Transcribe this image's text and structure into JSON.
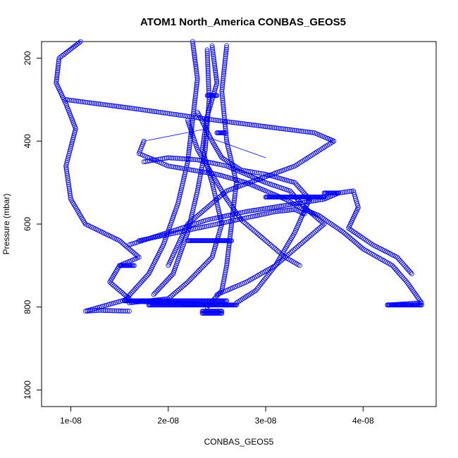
{
  "chart_data": {
    "type": "scatter",
    "title": "ATOM1 North_America CONBAS_GEOS5",
    "xlabel": "CONBAS_GEOS5",
    "ylabel": "Pressure (mbar)",
    "xlim": [
      7e-09,
      4.75e-08
    ],
    "ylim": [
      1040,
      160
    ],
    "y_reversed": true,
    "grid": false,
    "x_ticks": [
      {
        "value": 1e-08,
        "label": "1e-08"
      },
      {
        "value": 2e-08,
        "label": "2e-08"
      },
      {
        "value": 3e-08,
        "label": "3e-08"
      },
      {
        "value": 4e-08,
        "label": "4e-08"
      }
    ],
    "y_ticks": [
      {
        "value": 200,
        "label": "200"
      },
      {
        "value": 400,
        "label": "400"
      },
      {
        "value": 600,
        "label": "600"
      },
      {
        "value": 800,
        "label": "800"
      },
      {
        "value": 1000,
        "label": "1000"
      }
    ],
    "color": "#0000ff",
    "marker": "open-circle",
    "series": [
      {
        "x": [
          1.1e-08,
          8.8e-09,
          8.5e-09,
          9.5e-09,
          1.05e-08,
          9.5e-09,
          1e-08,
          1.15e-08,
          1.5e-08,
          1.7e-08,
          1.5e-08,
          1.4e-08,
          1.6e-08,
          1.15e-08,
          1.3e-08,
          1.6e-08
        ],
        "y": [
          160,
          200,
          260,
          310,
          370,
          460,
          540,
          600,
          640,
          680,
          700,
          740,
          780,
          810,
          808,
          810
        ]
      },
      {
        "x": [
          9.5e-09,
          1.6e-08,
          2.5e-08,
          3.5e-08,
          3.7e-08,
          3.3e-08,
          2.6e-08,
          2.2e-08,
          2e-08
        ],
        "y": [
          300,
          320,
          350,
          380,
          400,
          460,
          520,
          600,
          700
        ]
      },
      {
        "x": [
          1.75e-08,
          1.7e-08,
          2e-08,
          2.5e-08,
          2.8e-08,
          3e-08,
          3.2e-08,
          3.35e-08,
          3.55e-08,
          3.8e-08,
          4e-08,
          4.3e-08,
          4.45e-08,
          4.6e-08,
          4.25e-08
        ],
        "y": [
          400,
          430,
          460,
          480,
          500,
          520,
          540,
          560,
          580,
          620,
          660,
          700,
          740,
          790,
          795
        ]
      },
      {
        "x": [
          1.6e-08,
          2e-08,
          2.4e-08,
          2.8e-08,
          3.2e-08,
          3.6e-08,
          3.75e-08,
          3.9e-08,
          3.95e-08,
          3.85e-08,
          4.1e-08,
          4.35e-08,
          4.5e-08
        ],
        "y": [
          650,
          620,
          590,
          570,
          555,
          540,
          525,
          520,
          560,
          610,
          650,
          680,
          720
        ]
      },
      {
        "x": [
          2.25e-08,
          2.3e-08,
          2.25e-08,
          2.2e-08,
          2.1e-08,
          1.95e-08,
          1.8e-08,
          1.55e-08,
          2e-08,
          2.6e-08
        ],
        "y": [
          160,
          250,
          350,
          450,
          550,
          650,
          720,
          785,
          790,
          795
        ]
      },
      {
        "x": [
          2.45e-08,
          2.5e-08,
          2.4e-08,
          2.35e-08,
          2.45e-08,
          2.55e-08,
          2.45e-08,
          2.2e-08,
          2e-08,
          1.6e-08
        ],
        "y": [
          170,
          260,
          340,
          420,
          500,
          600,
          680,
          740,
          780,
          790
        ]
      },
      {
        "x": [
          2.6e-08,
          2.55e-08,
          2.6e-08,
          2.7e-08,
          2.65e-08,
          2.6e-08,
          2.55e-08,
          2.4e-08
        ],
        "y": [
          170,
          280,
          400,
          500,
          600,
          700,
          760,
          800
        ]
      },
      {
        "x": [
          2.3e-08,
          2.45e-08,
          2.55e-08,
          2.75e-08,
          3e-08,
          3.3e-08,
          3.45e-08,
          3.3e-08,
          3.1e-08,
          2.9e-08,
          2.7e-08
        ],
        "y": [
          330,
          400,
          440,
          470,
          480,
          500,
          540,
          620,
          700,
          760,
          790
        ]
      },
      {
        "x": [
          2.2e-08,
          2.3e-08,
          2.45e-08,
          2.6e-08,
          2.75e-08,
          2.9e-08,
          3.05e-08,
          3.2e-08,
          3.35e-08
        ],
        "y": [
          350,
          420,
          480,
          540,
          590,
          620,
          650,
          680,
          700
        ]
      },
      {
        "x": [
          1.75e-08,
          2e-08,
          2.3e-08,
          2.6e-08,
          2.8e-08,
          3e-08,
          3.25e-08,
          3.4e-08,
          3.6e-08,
          3.35e-08,
          3.1e-08,
          2.8e-08,
          2.5e-08
        ],
        "y": [
          450,
          440,
          445,
          460,
          480,
          500,
          520,
          560,
          600,
          650,
          700,
          740,
          770
        ]
      },
      {
        "x": [
          1.7e-08,
          2e-08,
          2.3e-08,
          2.6e-08,
          2.9e-08,
          3.1e-08,
          3.3e-08,
          3.4e-08
        ],
        "y": [
          640,
          625,
          610,
          595,
          580,
          570,
          565,
          575
        ]
      },
      {
        "x": [
          2.4e-08,
          2.42e-08,
          2.38e-08,
          2.3e-08,
          2.2e-08,
          2.05e-08,
          1.85e-08
        ],
        "y": [
          180,
          300,
          420,
          520,
          620,
          720,
          770
        ]
      }
    ],
    "dense_segments": [
      {
        "x": [
          1.5e-08,
          1.65e-08
        ],
        "y": 700
      },
      {
        "x": [
          1.55e-08,
          2.6e-08
        ],
        "y": 785
      },
      {
        "x": [
          1.8e-08,
          2.7e-08
        ],
        "y": 795
      },
      {
        "x": [
          2.2e-08,
          2.65e-08
        ],
        "y": 640
      },
      {
        "x": [
          2.35e-08,
          2.55e-08
        ],
        "y": 810
      },
      {
        "x": [
          2.35e-08,
          2.55e-08
        ],
        "y": 815
      },
      {
        "x": [
          3e-08,
          3.6e-08
        ],
        "y": 535
      },
      {
        "x": [
          3.6e-08,
          3.75e-08
        ],
        "y": 525
      },
      {
        "x": [
          4.25e-08,
          4.6e-08
        ],
        "y": 795
      },
      {
        "x": [
          2.4e-08,
          2.5e-08
        ],
        "y": 290
      },
      {
        "x": [
          2.5e-08,
          2.58e-08
        ],
        "y": 380
      }
    ],
    "connectors": [
      {
        "x": [
          9e-09,
          1.1e-08
        ],
        "y": [
          190,
          160
        ]
      },
      {
        "x": [
          1.75e-08,
          2.4e-08
        ],
        "y": [
          400,
          370
        ]
      },
      {
        "x": [
          2.4e-08,
          3e-08
        ],
        "y": [
          390,
          440
        ]
      }
    ]
  }
}
